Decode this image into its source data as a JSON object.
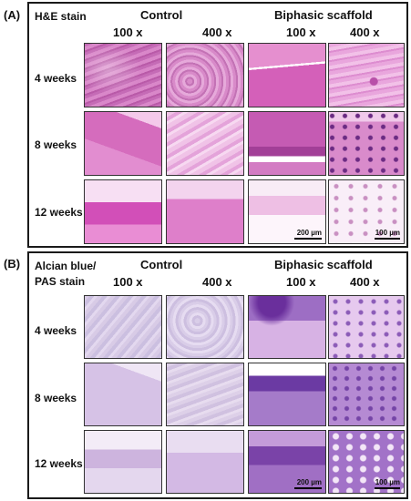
{
  "panels": [
    {
      "label": "(A)",
      "stain_lines": [
        "H&E stain"
      ],
      "groups": [
        "Control",
        "Biphasic scaffold"
      ],
      "magnifications": [
        "100 x",
        "400 x",
        "100 x",
        "400 x"
      ],
      "rows": [
        "4 weeks",
        "8 weeks",
        "12 weeks"
      ],
      "scale_bars": [
        "200 µm",
        "100 µm"
      ]
    },
    {
      "label": "(B)",
      "stain_lines": [
        "Alcian blue/",
        "PAS stain"
      ],
      "groups": [
        "Control",
        "Biphasic scaffold"
      ],
      "magnifications": [
        "100 x",
        "400 x",
        "100 x",
        "400 x"
      ],
      "rows": [
        "4 weeks",
        "8 weeks",
        "12 weeks"
      ],
      "scale_bars": [
        "200 µm",
        "100 µm"
      ]
    }
  ],
  "colors": {
    "he_stain": "#d46fbf",
    "alcian_pas_stain": "#a87fc9",
    "border": "#1a1a1a"
  }
}
